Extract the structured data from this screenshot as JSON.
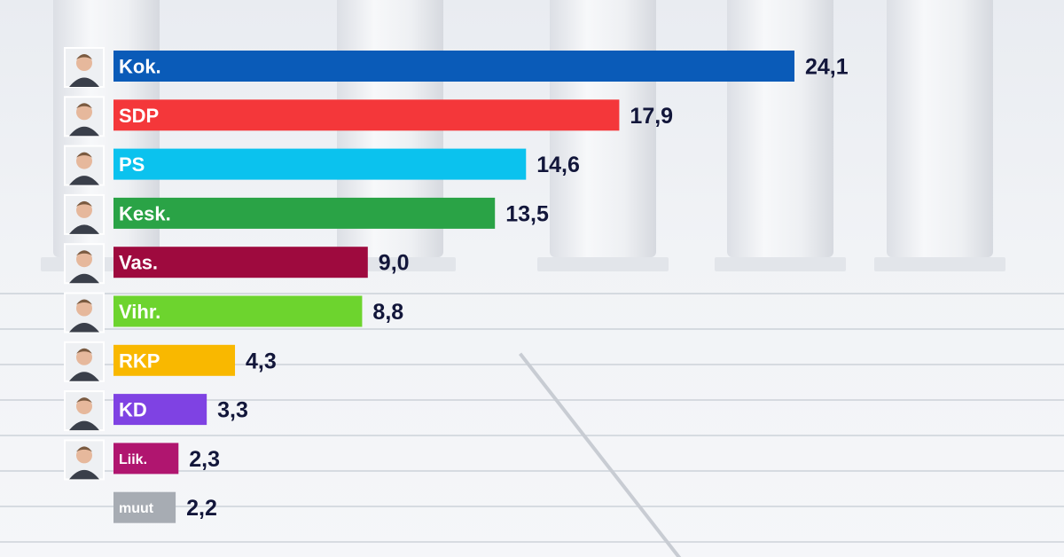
{
  "chart_data": {
    "type": "bar",
    "orientation": "horizontal",
    "title": "",
    "xlabel": "",
    "ylabel": "",
    "xlim": [
      0,
      24.1
    ],
    "grid": false,
    "legend": "none",
    "categories": [
      "Kok.",
      "SDP",
      "PS",
      "Kesk.",
      "Vas.",
      "Vihr.",
      "RKP",
      "KD",
      "Liik.",
      "muut"
    ],
    "values": [
      24.1,
      17.9,
      14.6,
      13.5,
      9.0,
      8.8,
      4.3,
      3.3,
      2.3,
      2.2
    ],
    "value_labels": [
      "24,1",
      "17,9",
      "14,6",
      "13,5",
      "9,0",
      "8,8",
      "4,3",
      "3,3",
      "2,3",
      "2,2"
    ],
    "colors": [
      "#0a5bb8",
      "#f4373a",
      "#0bc2ee",
      "#2aa346",
      "#9e0a3e",
      "#6dd42e",
      "#f9b800",
      "#7f42e3",
      "#b0156f",
      "#a7acb3"
    ],
    "avatar_icons": [
      "portrait-icon",
      "portrait-icon",
      "portrait-icon",
      "portrait-icon",
      "portrait-icon",
      "portrait-icon",
      "portrait-icon",
      "portrait-icon",
      "portrait-icon",
      ""
    ]
  }
}
